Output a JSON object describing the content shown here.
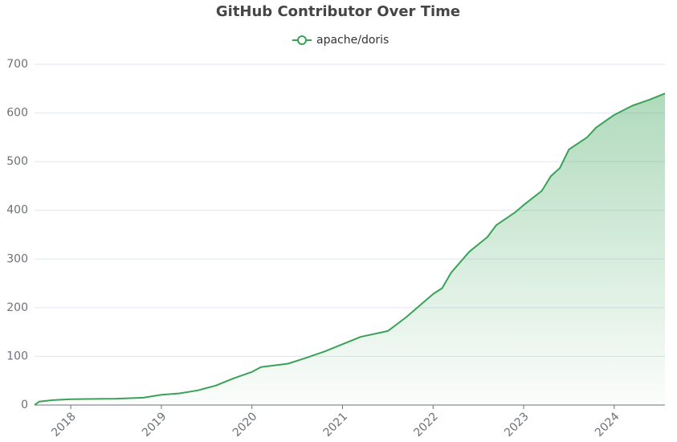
{
  "chart_data": {
    "type": "line",
    "title": "GitHub Contributor Over Time",
    "x": [
      2017.6,
      2017.65,
      2017.8,
      2018.0,
      2018.5,
      2018.8,
      2019.0,
      2019.2,
      2019.4,
      2019.6,
      2019.8,
      2020.0,
      2020.1,
      2020.4,
      2020.6,
      2020.8,
      2021.0,
      2021.2,
      2021.5,
      2021.7,
      2022.0,
      2022.1,
      2022.2,
      2022.4,
      2022.6,
      2022.7,
      2022.9,
      2023.0,
      2023.2,
      2023.3,
      2023.4,
      2023.5,
      2023.7,
      2023.8,
      2024.0,
      2024.2,
      2024.4,
      2024.56
    ],
    "series": [
      {
        "name": "apache/doris",
        "color": "#3aa257",
        "values": [
          0,
          7,
          10,
          12,
          13,
          15,
          21,
          24,
          30,
          40,
          55,
          68,
          78,
          85,
          97,
          110,
          125,
          140,
          152,
          180,
          228,
          240,
          272,
          315,
          345,
          370,
          395,
          411,
          440,
          470,
          487,
          525,
          550,
          570,
          596,
          615,
          628,
          640
        ]
      }
    ],
    "xlim": [
      2017.6,
      2024.56
    ],
    "xticks": [
      2018,
      2019,
      2020,
      2021,
      2022,
      2023,
      2024
    ],
    "ylim": [
      0,
      700
    ],
    "yticks": [
      0,
      100,
      200,
      300,
      400,
      500,
      600,
      700
    ],
    "grid": true,
    "area": true
  }
}
